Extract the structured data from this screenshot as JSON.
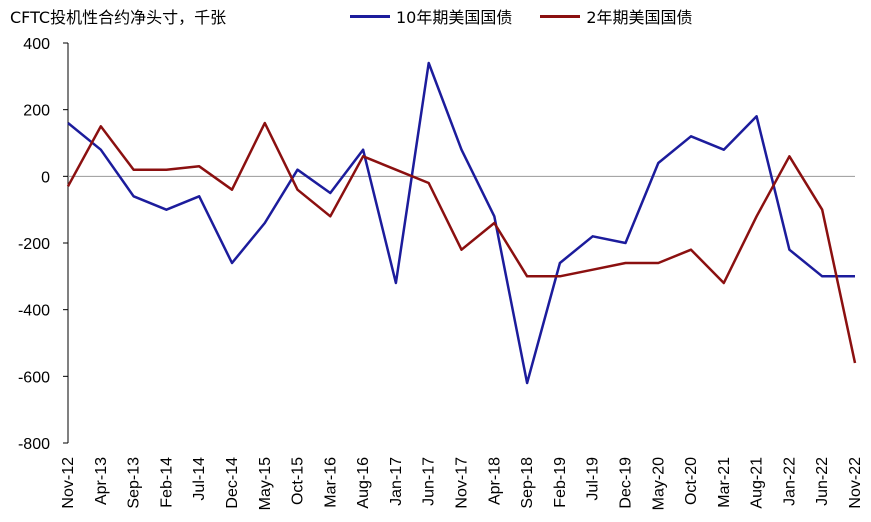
{
  "chart_data": {
    "type": "line",
    "title": "CFTC投机性合约净头寸，千张",
    "xlabel": "",
    "ylabel": "",
    "ylim": [
      -800,
      400
    ],
    "yticks": [
      400,
      200,
      0,
      -200,
      -400,
      -600,
      -800
    ],
    "grid": false,
    "legend_position": "top",
    "categories": [
      "Nov-12",
      "Apr-13",
      "Sep-13",
      "Feb-14",
      "Jul-14",
      "Dec-14",
      "May-15",
      "Oct-15",
      "Mar-16",
      "Aug-16",
      "Jan-17",
      "Jun-17",
      "Nov-17",
      "Apr-18",
      "Sep-18",
      "Feb-19",
      "Jul-19",
      "Dec-19",
      "May-20",
      "Oct-20",
      "Mar-21",
      "Aug-21",
      "Jan-22",
      "Jun-22",
      "Nov-22"
    ],
    "series": [
      {
        "name": "10年期美国国债",
        "color": "#1c1c9c",
        "values": [
          160,
          80,
          -60,
          -100,
          -60,
          -260,
          -140,
          20,
          -50,
          80,
          -320,
          340,
          80,
          -120,
          -620,
          -260,
          -180,
          -200,
          40,
          120,
          80,
          180,
          -220,
          -300,
          -300
        ]
      },
      {
        "name": "2年期美国国债",
        "color": "#8b1010",
        "values": [
          -30,
          150,
          20,
          20,
          30,
          -40,
          160,
          -40,
          -120,
          60,
          20,
          -20,
          -220,
          -140,
          -300,
          -300,
          -280,
          -260,
          -260,
          -220,
          -320,
          -120,
          60,
          -100,
          -560
        ]
      }
    ]
  }
}
